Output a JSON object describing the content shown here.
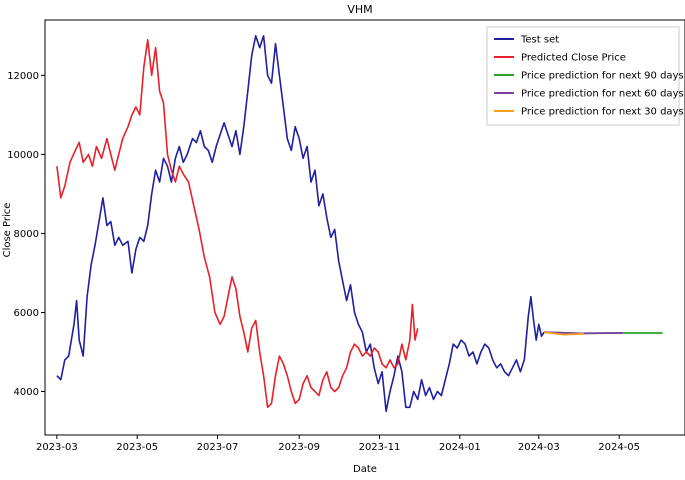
{
  "chart_data": {
    "type": "line",
    "title": "VHM",
    "xlabel": "Date",
    "ylabel": "Close Price",
    "x_ticks": [
      "2023-03",
      "2023-05",
      "2023-07",
      "2023-09",
      "2023-11",
      "2024-01",
      "2024-03",
      "2024-05"
    ],
    "y_ticks": [
      4000,
      6000,
      8000,
      10000,
      12000
    ],
    "xlim": [
      "2023-02-20",
      "2024-06-20"
    ],
    "ylim": [
      2900,
      13400
    ],
    "legend_position": "top-right",
    "series": [
      {
        "name": "Test set",
        "color": "#1f1fa0",
        "points": [
          [
            "2023-03-01",
            4400
          ],
          [
            "2023-03-04",
            4300
          ],
          [
            "2023-03-07",
            4800
          ],
          [
            "2023-03-10",
            4900
          ],
          [
            "2023-03-14",
            5700
          ],
          [
            "2023-03-16",
            6300
          ],
          [
            "2023-03-18",
            5300
          ],
          [
            "2023-03-21",
            4900
          ],
          [
            "2023-03-24",
            6400
          ],
          [
            "2023-03-27",
            7200
          ],
          [
            "2023-03-30",
            7700
          ],
          [
            "2023-04-02",
            8300
          ],
          [
            "2023-04-05",
            8900
          ],
          [
            "2023-04-08",
            8200
          ],
          [
            "2023-04-11",
            8300
          ],
          [
            "2023-04-14",
            7700
          ],
          [
            "2023-04-17",
            7900
          ],
          [
            "2023-04-20",
            7700
          ],
          [
            "2023-04-24",
            7800
          ],
          [
            "2023-04-27",
            7000
          ],
          [
            "2023-04-30",
            7600
          ],
          [
            "2023-05-03",
            7900
          ],
          [
            "2023-05-06",
            7800
          ],
          [
            "2023-05-09",
            8200
          ],
          [
            "2023-05-12",
            9000
          ],
          [
            "2023-05-15",
            9600
          ],
          [
            "2023-05-18",
            9300
          ],
          [
            "2023-05-21",
            9900
          ],
          [
            "2023-05-24",
            9700
          ],
          [
            "2023-05-27",
            9300
          ],
          [
            "2023-05-30",
            9900
          ],
          [
            "2023-06-02",
            10200
          ],
          [
            "2023-06-05",
            9800
          ],
          [
            "2023-06-08",
            10000
          ],
          [
            "2023-06-12",
            10400
          ],
          [
            "2023-06-15",
            10300
          ],
          [
            "2023-06-18",
            10600
          ],
          [
            "2023-06-21",
            10200
          ],
          [
            "2023-06-24",
            10100
          ],
          [
            "2023-06-27",
            9800
          ],
          [
            "2023-06-30",
            10200
          ],
          [
            "2023-07-03",
            10500
          ],
          [
            "2023-07-06",
            10800
          ],
          [
            "2023-07-09",
            10500
          ],
          [
            "2023-07-12",
            10200
          ],
          [
            "2023-07-15",
            10600
          ],
          [
            "2023-07-18",
            10000
          ],
          [
            "2023-07-21",
            10700
          ],
          [
            "2023-07-24",
            11600
          ],
          [
            "2023-07-27",
            12500
          ],
          [
            "2023-07-30",
            13000
          ],
          [
            "2023-08-02",
            12700
          ],
          [
            "2023-08-05",
            13000
          ],
          [
            "2023-08-08",
            12000
          ],
          [
            "2023-08-11",
            11800
          ],
          [
            "2023-08-14",
            12800
          ],
          [
            "2023-08-17",
            12000
          ],
          [
            "2023-08-20",
            11200
          ],
          [
            "2023-08-23",
            10400
          ],
          [
            "2023-08-26",
            10100
          ],
          [
            "2023-08-29",
            10700
          ],
          [
            "2023-09-01",
            10400
          ],
          [
            "2023-09-04",
            9900
          ],
          [
            "2023-09-07",
            10200
          ],
          [
            "2023-09-10",
            9300
          ],
          [
            "2023-09-13",
            9600
          ],
          [
            "2023-09-16",
            8700
          ],
          [
            "2023-09-19",
            9000
          ],
          [
            "2023-09-22",
            8400
          ],
          [
            "2023-09-25",
            7900
          ],
          [
            "2023-09-28",
            8100
          ],
          [
            "2023-10-01",
            7300
          ],
          [
            "2023-10-04",
            6800
          ],
          [
            "2023-10-07",
            6300
          ],
          [
            "2023-10-10",
            6700
          ],
          [
            "2023-10-13",
            6000
          ],
          [
            "2023-10-16",
            5700
          ],
          [
            "2023-10-19",
            5500
          ],
          [
            "2023-10-22",
            5000
          ],
          [
            "2023-10-25",
            5200
          ],
          [
            "2023-10-28",
            4600
          ],
          [
            "2023-10-31",
            4200
          ],
          [
            "2023-11-03",
            4500
          ],
          [
            "2023-11-06",
            3500
          ],
          [
            "2023-11-09",
            4000
          ],
          [
            "2023-11-12",
            4400
          ],
          [
            "2023-11-15",
            4900
          ],
          [
            "2023-11-18",
            4500
          ],
          [
            "2023-11-21",
            3600
          ],
          [
            "2023-11-24",
            3600
          ],
          [
            "2023-11-27",
            4000
          ],
          [
            "2023-11-30",
            3800
          ],
          [
            "2023-12-03",
            4300
          ],
          [
            "2023-12-06",
            3900
          ],
          [
            "2023-12-09",
            4100
          ],
          [
            "2023-12-12",
            3800
          ],
          [
            "2023-12-15",
            4000
          ],
          [
            "2023-12-18",
            3900
          ],
          [
            "2023-12-21",
            4300
          ],
          [
            "2023-12-24",
            4700
          ],
          [
            "2023-12-27",
            5200
          ],
          [
            "2023-12-30",
            5100
          ],
          [
            "2024-01-02",
            5300
          ],
          [
            "2024-01-05",
            5200
          ],
          [
            "2024-01-08",
            4900
          ],
          [
            "2024-01-11",
            5000
          ],
          [
            "2024-01-14",
            4700
          ],
          [
            "2024-01-17",
            5000
          ],
          [
            "2024-01-20",
            5200
          ],
          [
            "2024-01-23",
            5100
          ],
          [
            "2024-01-26",
            4800
          ],
          [
            "2024-01-29",
            4600
          ],
          [
            "2024-02-01",
            4700
          ],
          [
            "2024-02-04",
            4500
          ],
          [
            "2024-02-07",
            4400
          ],
          [
            "2024-02-10",
            4600
          ],
          [
            "2024-02-13",
            4800
          ],
          [
            "2024-02-16",
            4500
          ],
          [
            "2024-02-19",
            4800
          ],
          [
            "2024-02-22",
            5900
          ],
          [
            "2024-02-24",
            6400
          ],
          [
            "2024-02-26",
            5800
          ],
          [
            "2024-02-28",
            5300
          ],
          [
            "2024-03-01",
            5700
          ],
          [
            "2024-03-03",
            5400
          ],
          [
            "2024-03-05",
            5500
          ]
        ]
      },
      {
        "name": "Predicted Close Price",
        "color": "#e8202a",
        "points": [
          [
            "2023-03-01",
            9700
          ],
          [
            "2023-03-04",
            8900
          ],
          [
            "2023-03-07",
            9200
          ],
          [
            "2023-03-11",
            9800
          ],
          [
            "2023-03-15",
            10100
          ],
          [
            "2023-03-18",
            10300
          ],
          [
            "2023-03-21",
            9800
          ],
          [
            "2023-03-25",
            10000
          ],
          [
            "2023-03-28",
            9700
          ],
          [
            "2023-03-31",
            10200
          ],
          [
            "2023-04-04",
            9900
          ],
          [
            "2023-04-08",
            10400
          ],
          [
            "2023-04-11",
            10000
          ],
          [
            "2023-04-14",
            9600
          ],
          [
            "2023-04-17",
            10000
          ],
          [
            "2023-04-20",
            10400
          ],
          [
            "2023-04-24",
            10700
          ],
          [
            "2023-04-27",
            11000
          ],
          [
            "2023-04-30",
            11200
          ],
          [
            "2023-05-03",
            11000
          ],
          [
            "2023-05-06",
            12200
          ],
          [
            "2023-05-09",
            12900
          ],
          [
            "2023-05-12",
            12000
          ],
          [
            "2023-05-15",
            12700
          ],
          [
            "2023-05-18",
            11600
          ],
          [
            "2023-05-21",
            11300
          ],
          [
            "2023-05-24",
            10000
          ],
          [
            "2023-05-27",
            9600
          ],
          [
            "2023-05-30",
            9300
          ],
          [
            "2023-06-02",
            9700
          ],
          [
            "2023-06-05",
            9500
          ],
          [
            "2023-06-09",
            9300
          ],
          [
            "2023-06-13",
            8700
          ],
          [
            "2023-06-17",
            8100
          ],
          [
            "2023-06-21",
            7400
          ],
          [
            "2023-06-25",
            6900
          ],
          [
            "2023-06-29",
            6000
          ],
          [
            "2023-07-03",
            5700
          ],
          [
            "2023-07-06",
            5900
          ],
          [
            "2023-07-09",
            6400
          ],
          [
            "2023-07-12",
            6900
          ],
          [
            "2023-07-15",
            6600
          ],
          [
            "2023-07-18",
            5900
          ],
          [
            "2023-07-21",
            5500
          ],
          [
            "2023-07-24",
            5000
          ],
          [
            "2023-07-27",
            5600
          ],
          [
            "2023-07-30",
            5800
          ],
          [
            "2023-08-02",
            5000
          ],
          [
            "2023-08-05",
            4400
          ],
          [
            "2023-08-08",
            3600
          ],
          [
            "2023-08-11",
            3700
          ],
          [
            "2023-08-14",
            4400
          ],
          [
            "2023-08-17",
            4900
          ],
          [
            "2023-08-20",
            4700
          ],
          [
            "2023-08-23",
            4400
          ],
          [
            "2023-08-26",
            4000
          ],
          [
            "2023-08-29",
            3700
          ],
          [
            "2023-09-01",
            3800
          ],
          [
            "2023-09-04",
            4200
          ],
          [
            "2023-09-07",
            4400
          ],
          [
            "2023-09-10",
            4100
          ],
          [
            "2023-09-13",
            4000
          ],
          [
            "2023-09-16",
            3900
          ],
          [
            "2023-09-19",
            4300
          ],
          [
            "2023-09-22",
            4500
          ],
          [
            "2023-09-25",
            4100
          ],
          [
            "2023-09-28",
            4000
          ],
          [
            "2023-10-01",
            4100
          ],
          [
            "2023-10-04",
            4400
          ],
          [
            "2023-10-07",
            4600
          ],
          [
            "2023-10-10",
            5000
          ],
          [
            "2023-10-13",
            5200
          ],
          [
            "2023-10-16",
            5100
          ],
          [
            "2023-10-19",
            4900
          ],
          [
            "2023-10-22",
            5000
          ],
          [
            "2023-10-25",
            4900
          ],
          [
            "2023-10-28",
            5100
          ],
          [
            "2023-10-31",
            5000
          ],
          [
            "2023-11-03",
            4700
          ],
          [
            "2023-11-06",
            4600
          ],
          [
            "2023-11-09",
            4800
          ],
          [
            "2023-11-12",
            4600
          ],
          [
            "2023-11-15",
            4700
          ],
          [
            "2023-11-18",
            5200
          ],
          [
            "2023-11-21",
            4800
          ],
          [
            "2023-11-24",
            5300
          ],
          [
            "2023-11-26",
            6200
          ],
          [
            "2023-11-28",
            5300
          ],
          [
            "2023-11-30",
            5600
          ]
        ]
      },
      {
        "name": "Price prediction for next 90 days",
        "color": "#2ca02c",
        "points": [
          [
            "2024-03-05",
            5500
          ],
          [
            "2024-04-01",
            5470
          ],
          [
            "2024-05-01",
            5480
          ],
          [
            "2024-06-03",
            5480
          ]
        ]
      },
      {
        "name": "Price prediction for next 60 days",
        "color": "#7b3fa6",
        "points": [
          [
            "2024-03-05",
            5500
          ],
          [
            "2024-04-01",
            5470
          ],
          [
            "2024-05-01",
            5480
          ],
          [
            "2024-05-04",
            5480
          ]
        ]
      },
      {
        "name": "Price prediction for next 30 days",
        "color": "#f5a020",
        "points": [
          [
            "2024-03-05",
            5500
          ],
          [
            "2024-03-20",
            5440
          ],
          [
            "2024-04-04",
            5460
          ]
        ]
      }
    ]
  }
}
